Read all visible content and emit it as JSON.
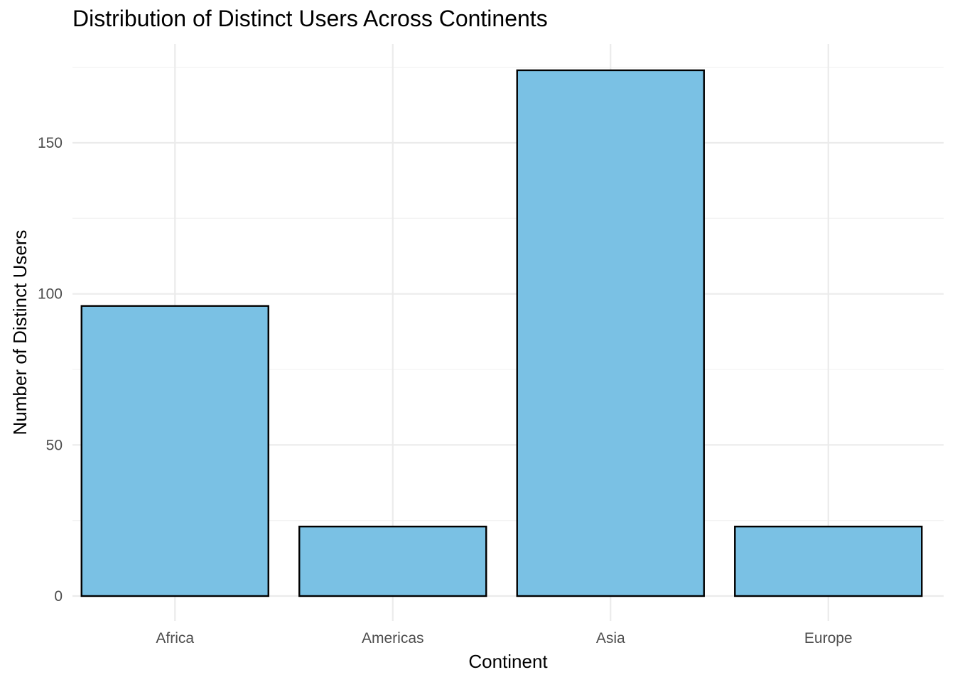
{
  "chart_data": {
    "type": "bar",
    "title": "Distribution of Distinct Users Across Continents",
    "xlabel": "Continent",
    "ylabel": "Number of Distinct Users",
    "categories": [
      "Africa",
      "Americas",
      "Asia",
      "Europe"
    ],
    "values": [
      96,
      23,
      174,
      23
    ],
    "ylim": [
      0,
      182
    ],
    "yticks": [
      0,
      50,
      100,
      150
    ],
    "grid": true,
    "legend": "none",
    "colors": {
      "bar_fill": "#7AC1E4",
      "bar_stroke": "#000000",
      "grid_major": "#EBEBEB",
      "grid_minor": "#F3F3F3",
      "tick_text": "#4D4D4D",
      "axis_title": "#000000"
    }
  }
}
